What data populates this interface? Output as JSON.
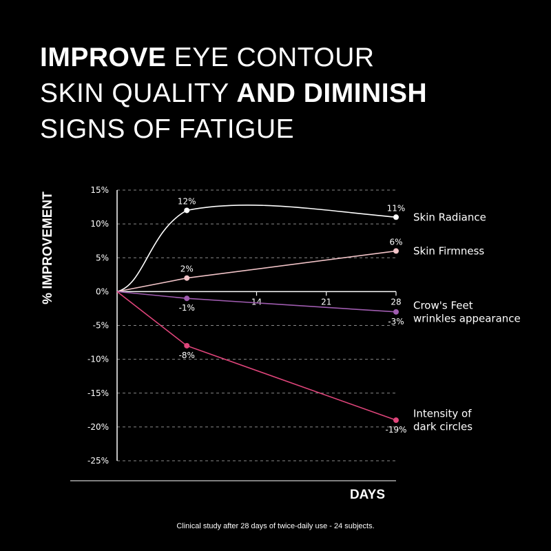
{
  "headline": {
    "line1_bold": "IMPROVE",
    "line1_rest": " EYE CONTOUR",
    "line2_regular": "SKIN QUALITY ",
    "line2_bold": "AND DIMINISH",
    "line3": "SIGNS OF FATIGUE"
  },
  "footnote": "Clinical study after 28 days of twice-daily use - 24 subjects.",
  "chart_data": {
    "type": "line",
    "title": "IMPROVE EYE CONTOUR SKIN QUALITY AND DIMINISH SIGNS OF FATIGUE",
    "xlabel": "DAYS",
    "ylabel": "% IMPROVEMENT",
    "xlim": [
      0,
      28
    ],
    "ylim": [
      -25,
      15
    ],
    "xticks": [
      14,
      21,
      28
    ],
    "yticks": [
      15,
      10,
      5,
      0,
      -5,
      -10,
      -15,
      -20,
      -25
    ],
    "ytick_labels": [
      "15%",
      "10%",
      "5%",
      "0%",
      "-5%",
      "-10%",
      "-15%",
      "-20%",
      "-25%"
    ],
    "grid": "horizontal dashed",
    "legend": "right, labels at line ends",
    "series": [
      {
        "name": "Skin Radiance",
        "color": "#ffffff",
        "curve": "smooth",
        "points": [
          [
            0,
            0
          ],
          [
            7,
            12
          ],
          [
            28,
            11
          ]
        ],
        "labels": [
          "12%",
          "11%"
        ]
      },
      {
        "name": "Skin Firmness",
        "color": "#f2c4c8",
        "curve": "linear",
        "points": [
          [
            0,
            0
          ],
          [
            7,
            2
          ],
          [
            28,
            6
          ]
        ],
        "labels": [
          "2%",
          "6%"
        ]
      },
      {
        "name": "Crow's Feet wrinkles appearance",
        "name_lines": [
          "Crow's Feet",
          "wrinkles appearance"
        ],
        "color": "#a05cb0",
        "curve": "linear",
        "points": [
          [
            0,
            0
          ],
          [
            7,
            -1
          ],
          [
            28,
            -3
          ]
        ],
        "labels": [
          "-1%",
          "-3%"
        ]
      },
      {
        "name": "Intensity of dark circles",
        "name_lines": [
          "Intensity of",
          "dark circles"
        ],
        "color": "#e0457b",
        "curve": "linear",
        "points": [
          [
            0,
            0
          ],
          [
            7,
            -8
          ],
          [
            28,
            -19
          ]
        ],
        "labels": [
          "-8%",
          "-19%"
        ]
      }
    ]
  }
}
